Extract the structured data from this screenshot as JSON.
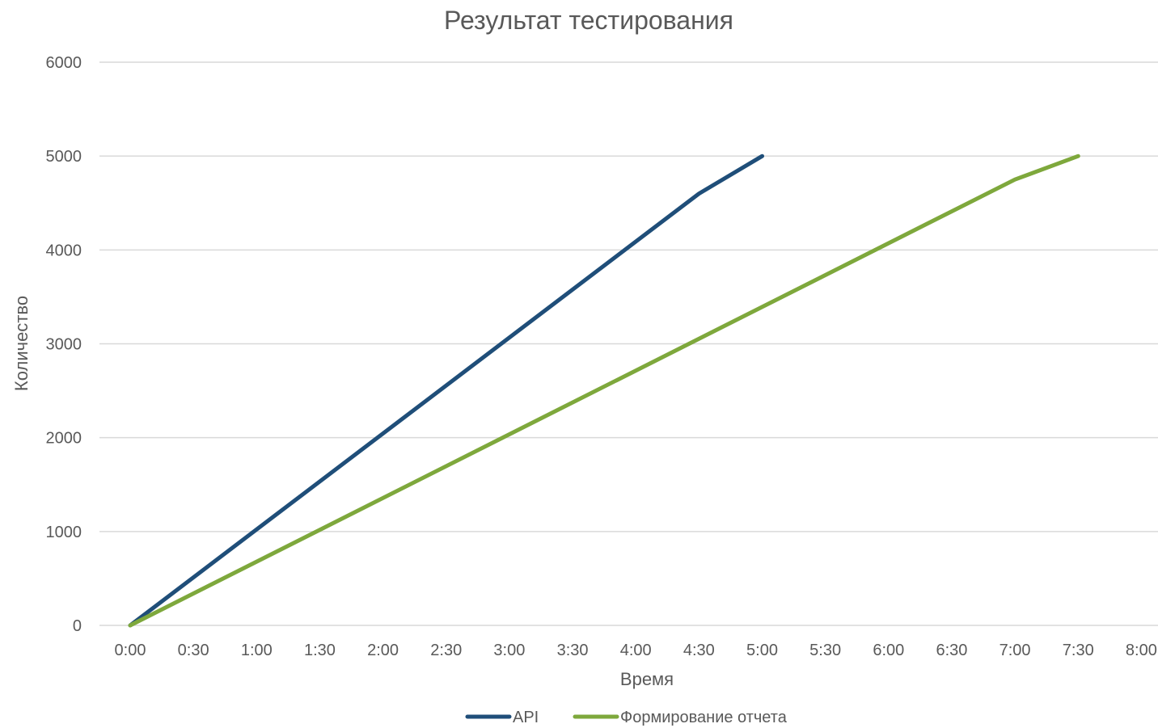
{
  "chart_data": {
    "type": "line",
    "title": "Результат тестирования",
    "xlabel": "Время",
    "ylabel": "Количество",
    "x_ticks": [
      "0:00",
      "0:30",
      "1:00",
      "1:30",
      "2:00",
      "2:30",
      "3:00",
      "3:30",
      "4:00",
      "4:30",
      "5:00",
      "5:30",
      "6:00",
      "6:30",
      "7:00",
      "7:30",
      "8:00"
    ],
    "y_ticks": [
      0,
      1000,
      2000,
      3000,
      4000,
      5000,
      6000
    ],
    "ylim": [
      0,
      6000
    ],
    "grid": true,
    "legend_position": "bottom",
    "series": [
      {
        "name": "API",
        "color": "#1f4e79",
        "points": [
          {
            "x": "0:00",
            "y": 0
          },
          {
            "x": "4:30",
            "y": 4600
          },
          {
            "x": "5:00",
            "y": 5000
          }
        ]
      },
      {
        "name": "Формирование отчета",
        "color": "#7ea83c",
        "points": [
          {
            "x": "0:00",
            "y": 0
          },
          {
            "x": "7:00",
            "y": 4750
          },
          {
            "x": "7:30",
            "y": 5000
          }
        ]
      }
    ]
  }
}
